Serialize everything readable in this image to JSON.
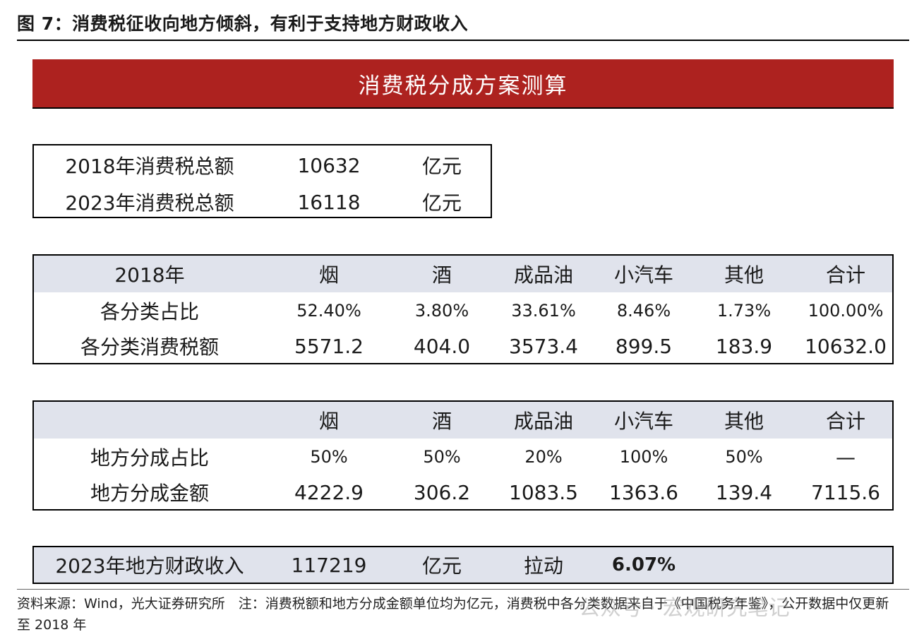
{
  "figure_title": "图 7：消费税征收向地方倾斜，有利于支持地方财政收入",
  "banner": "消费税分成方案测算",
  "totals": [
    {
      "label": "2018年消费税总额",
      "value": "10632",
      "unit": "亿元"
    },
    {
      "label": "2023年消费税总额",
      "value": "16118",
      "unit": "亿元"
    }
  ],
  "table1": {
    "header": [
      "2018年",
      "烟",
      "酒",
      "成品油",
      "小汽车",
      "其他",
      "合计"
    ],
    "rows": [
      [
        "各分类占比",
        "52.40%",
        "3.80%",
        "33.61%",
        "8.46%",
        "1.73%",
        "100.00%"
      ],
      [
        "各分类消费税额",
        "5571.2",
        "404.0",
        "3573.4",
        "899.5",
        "183.9",
        "10632.0"
      ]
    ]
  },
  "table2": {
    "header": [
      "",
      "烟",
      "酒",
      "成品油",
      "小汽车",
      "其他",
      "合计"
    ],
    "rows": [
      [
        "地方分成占比",
        "50%",
        "50%",
        "20%",
        "100%",
        "50%",
        "—"
      ],
      [
        "地方分成金额",
        "4222.9",
        "306.2",
        "1083.5",
        "1363.6",
        "139.4",
        "7115.6"
      ]
    ]
  },
  "summary": {
    "label": "2023年地方财政收入",
    "value": "117219",
    "unit": "亿元",
    "pull_label": "拉动",
    "pull_value": "6.07%"
  },
  "source_note": "资料来源：Wind，光大证券研究所　注：消费税额和地方分成金额单位均为亿元，消费税中各分类数据来自于《中国税务年鉴》，公开数据中仅更新至 2018 年",
  "watermark": "公众号 · 宏观研究笔记"
}
